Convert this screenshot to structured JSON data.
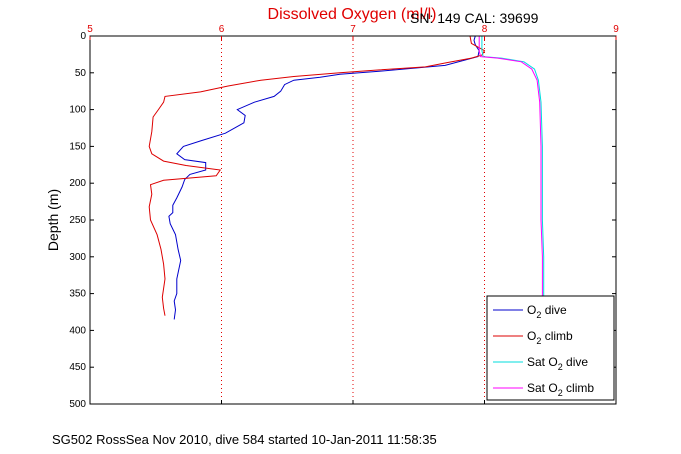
{
  "chart_data": {
    "type": "line",
    "title": "Dissolved Oxygen (ml/l)",
    "header_right": "SN: 149  CAL: 39699",
    "xlabel": "",
    "ylabel": "Depth (m)",
    "footer": "SG502 RossSea Nov 2010, dive 584 started 10-Jan-2011 11:58:35",
    "xlim": [
      5,
      9
    ],
    "ylim": [
      0,
      500
    ],
    "y_reversed": true,
    "x_axis_position": "top",
    "x_ticks": [
      "5",
      "6",
      "7",
      "8",
      "9"
    ],
    "y_ticks": [
      "0",
      "50",
      "100",
      "150",
      "200",
      "250",
      "300",
      "350",
      "400",
      "450",
      "500"
    ],
    "grid": "x-only dotted red",
    "legend_position": "bottom-right",
    "series": [
      {
        "name": "O2 dive",
        "color": "#0000cc",
        "points": [
          [
            7.93,
            0
          ],
          [
            7.92,
            6
          ],
          [
            7.93,
            12
          ],
          [
            7.96,
            20
          ],
          [
            7.95,
            28
          ],
          [
            7.7,
            40
          ],
          [
            7.2,
            48
          ],
          [
            6.9,
            52
          ],
          [
            6.75,
            56
          ],
          [
            6.55,
            60
          ],
          [
            6.48,
            66
          ],
          [
            6.45,
            75
          ],
          [
            6.4,
            82
          ],
          [
            6.25,
            90
          ],
          [
            6.12,
            100
          ],
          [
            6.18,
            108
          ],
          [
            6.17,
            118
          ],
          [
            6.03,
            132
          ],
          [
            5.85,
            142
          ],
          [
            5.71,
            150
          ],
          [
            5.66,
            160
          ],
          [
            5.72,
            168
          ],
          [
            5.88,
            172
          ],
          [
            5.88,
            182
          ],
          [
            5.76,
            188
          ],
          [
            5.72,
            195
          ],
          [
            5.7,
            205
          ],
          [
            5.66,
            220
          ],
          [
            5.63,
            230
          ],
          [
            5.63,
            240
          ],
          [
            5.6,
            245
          ],
          [
            5.61,
            255
          ],
          [
            5.65,
            270
          ],
          [
            5.67,
            290
          ],
          [
            5.69,
            305
          ],
          [
            5.66,
            330
          ],
          [
            5.66,
            350
          ],
          [
            5.64,
            360
          ],
          [
            5.65,
            372
          ],
          [
            5.64,
            385
          ]
        ]
      },
      {
        "name": "O2 climb",
        "color": "#dd0000",
        "points": [
          [
            7.89,
            0
          ],
          [
            7.9,
            10
          ],
          [
            8.0,
            20
          ],
          [
            7.98,
            26
          ],
          [
            7.9,
            30
          ],
          [
            7.72,
            36
          ],
          [
            7.55,
            42
          ],
          [
            7.2,
            46
          ],
          [
            6.9,
            50
          ],
          [
            6.55,
            55
          ],
          [
            6.3,
            60
          ],
          [
            6.05,
            68
          ],
          [
            5.84,
            76
          ],
          [
            5.57,
            82
          ],
          [
            5.56,
            90
          ],
          [
            5.52,
            100
          ],
          [
            5.48,
            110
          ],
          [
            5.47,
            130
          ],
          [
            5.45,
            150
          ],
          [
            5.47,
            160
          ],
          [
            5.56,
            170
          ],
          [
            5.73,
            176
          ],
          [
            5.99,
            182
          ],
          [
            5.96,
            190
          ],
          [
            5.56,
            196
          ],
          [
            5.46,
            202
          ],
          [
            5.47,
            215
          ],
          [
            5.45,
            232
          ],
          [
            5.46,
            250
          ],
          [
            5.51,
            270
          ],
          [
            5.54,
            290
          ],
          [
            5.56,
            310
          ],
          [
            5.57,
            330
          ],
          [
            5.55,
            355
          ],
          [
            5.56,
            370
          ],
          [
            5.57,
            380
          ]
        ]
      },
      {
        "name": "Sat O2 dive",
        "color": "#00dddd",
        "points": [
          [
            7.98,
            0
          ],
          [
            7.98,
            20
          ],
          [
            7.99,
            28
          ],
          [
            8.13,
            30
          ],
          [
            8.3,
            35
          ],
          [
            8.38,
            45
          ],
          [
            8.41,
            60
          ],
          [
            8.43,
            90
          ],
          [
            8.44,
            150
          ],
          [
            8.44,
            200
          ],
          [
            8.44,
            250
          ],
          [
            8.45,
            300
          ],
          [
            8.45,
            360
          ]
        ]
      },
      {
        "name": "Sat O2 climb",
        "color": "#ff00ff",
        "points": [
          [
            7.96,
            0
          ],
          [
            7.96,
            20
          ],
          [
            7.97,
            28
          ],
          [
            8.1,
            30
          ],
          [
            8.28,
            35
          ],
          [
            8.36,
            45
          ],
          [
            8.4,
            60
          ],
          [
            8.42,
            90
          ],
          [
            8.43,
            150
          ],
          [
            8.43,
            200
          ],
          [
            8.43,
            250
          ],
          [
            8.44,
            300
          ],
          [
            8.44,
            360
          ]
        ]
      }
    ]
  }
}
